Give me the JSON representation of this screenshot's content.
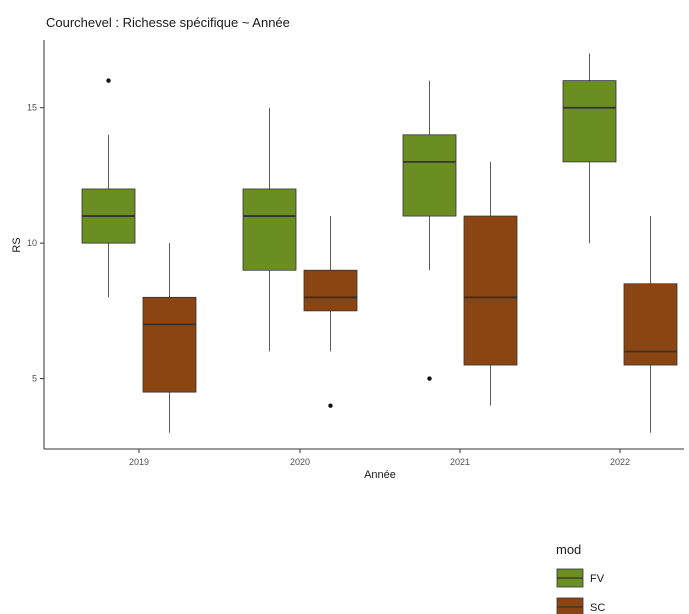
{
  "chart_data": {
    "type": "boxplot",
    "title": "Courchevel : Richesse spécifique ~ Année",
    "xlabel": "Année",
    "ylabel": "RS",
    "categories": [
      "2019",
      "2020",
      "2021",
      "2022"
    ],
    "y_ticks": [
      5,
      10,
      15
    ],
    "y_tick_labels": [
      "5",
      "10",
      "15"
    ],
    "ylim": [
      2.4,
      17.5
    ],
    "grid": false,
    "legend": {
      "title": "mod",
      "position": "bottom-right",
      "entries": [
        {
          "label": "FV",
          "color": "#6b8e23"
        },
        {
          "label": "SC",
          "color": "#8b4513"
        }
      ]
    },
    "series": [
      {
        "name": "FV",
        "color": "#6b8e23",
        "boxes": [
          {
            "category": "2019",
            "min": 8,
            "q1": 10,
            "median": 11,
            "q3": 12,
            "max": 14,
            "outliers": [
              16
            ]
          },
          {
            "category": "2020",
            "min": 6,
            "q1": 9,
            "median": 11,
            "q3": 12,
            "max": 15,
            "outliers": []
          },
          {
            "category": "2021",
            "min": 9,
            "q1": 11,
            "median": 13,
            "q3": 14,
            "max": 16,
            "outliers": [
              5
            ]
          },
          {
            "category": "2022",
            "min": 10,
            "q1": 13,
            "median": 15,
            "q3": 16,
            "max": 17,
            "outliers": []
          }
        ]
      },
      {
        "name": "SC",
        "color": "#8b4513",
        "boxes": [
          {
            "category": "2019",
            "min": 3,
            "q1": 4.5,
            "median": 7,
            "q3": 8,
            "max": 10,
            "outliers": []
          },
          {
            "category": "2020",
            "min": 6,
            "q1": 7.5,
            "median": 8,
            "q3": 9,
            "max": 11,
            "outliers": [
              4
            ]
          },
          {
            "category": "2021",
            "min": 4,
            "q1": 5.5,
            "median": 8,
            "q3": 11,
            "max": 13,
            "outliers": []
          },
          {
            "category": "2022",
            "min": 3,
            "q1": 5.5,
            "median": 6,
            "q3": 8.5,
            "max": 11,
            "outliers": []
          }
        ]
      }
    ]
  }
}
